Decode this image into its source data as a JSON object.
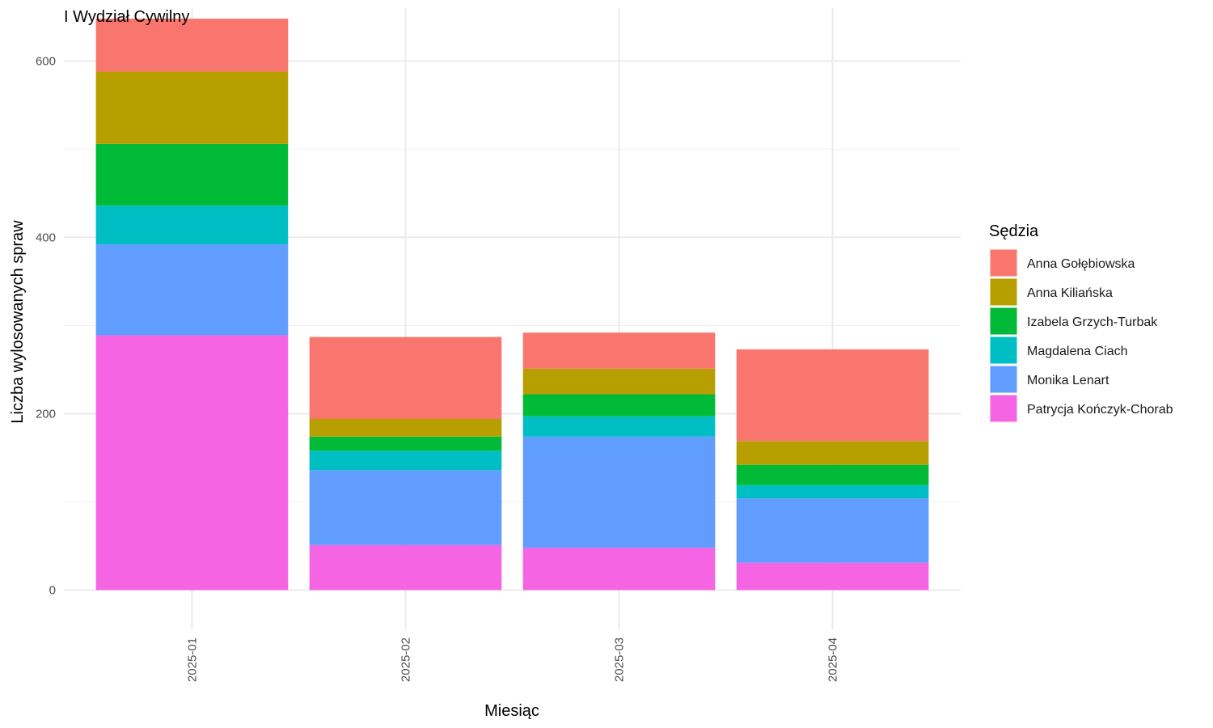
{
  "chart_data": {
    "type": "bar",
    "stacked": true,
    "title": "I Wydział Cywilny",
    "xlabel": "Miesiąc",
    "ylabel": "Liczba wylosowanych spraw",
    "categories": [
      "2025-01",
      "2025-02",
      "2025-03",
      "2025-04"
    ],
    "ylim": [
      0,
      650
    ],
    "yticks": [
      0,
      200,
      400,
      600
    ],
    "grid": true,
    "legend": {
      "title": "Sędzia",
      "position": "right"
    },
    "series": [
      {
        "name": "Patrycja Kończyk-Chorab",
        "color": "#F564E3",
        "values": [
          289,
          51,
          48,
          31
        ]
      },
      {
        "name": "Monika Lenart",
        "color": "#619CFF",
        "values": [
          103,
          85,
          126,
          73
        ]
      },
      {
        "name": "Magdalena Ciach",
        "color": "#00BFC4",
        "values": [
          44,
          22,
          23,
          15
        ]
      },
      {
        "name": "Izabela Grzych-Turbak",
        "color": "#00BA38",
        "values": [
          70,
          16,
          25,
          23
        ]
      },
      {
        "name": "Anna Kiliańska",
        "color": "#B79F00",
        "values": [
          82,
          20,
          29,
          27
        ]
      },
      {
        "name": "Anna Gołębiowska",
        "color": "#F8766D",
        "values": [
          60,
          93,
          41,
          104
        ]
      }
    ],
    "legend_order": [
      "Anna Gołębiowska",
      "Anna Kiliańska",
      "Izabela Grzych-Turbak",
      "Magdalena Ciach",
      "Monika Lenart",
      "Patrycja Kończyk-Chorab"
    ]
  }
}
